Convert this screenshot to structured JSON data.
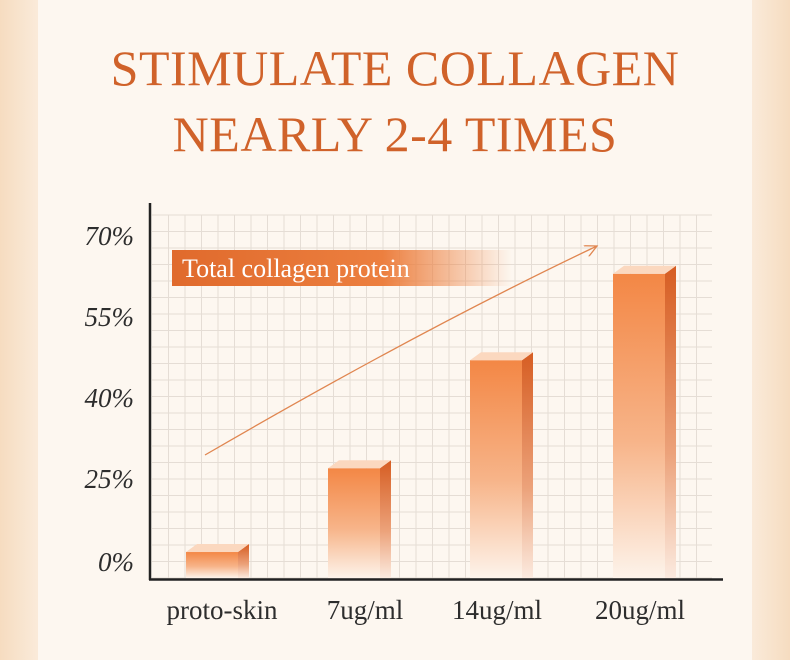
{
  "heading": {
    "line1": "STIMULATE COLLAGEN",
    "line2": "NEARLY 2-4 TIMES"
  },
  "colors": {
    "accent": "#d0622a",
    "bar_top": "#f4843e",
    "bar_face": "#f08a4a",
    "bar_side": "#d9612a",
    "axis": "#222222",
    "grid": "#e4dcd4"
  },
  "chart_data": {
    "type": "bar",
    "series_label": "Total collagen protein",
    "categories": [
      "proto-skin",
      "7ug/ml",
      "14ug/ml",
      "20ug/ml"
    ],
    "values": [
      3,
      27,
      47,
      63
    ],
    "ytick_labels": [
      "0%",
      "25%",
      "40%",
      "55%",
      "70%"
    ],
    "yticks": [
      0,
      25,
      40,
      55,
      70
    ],
    "ylim": [
      0,
      70
    ],
    "grid": true,
    "trend_arrow": true
  }
}
